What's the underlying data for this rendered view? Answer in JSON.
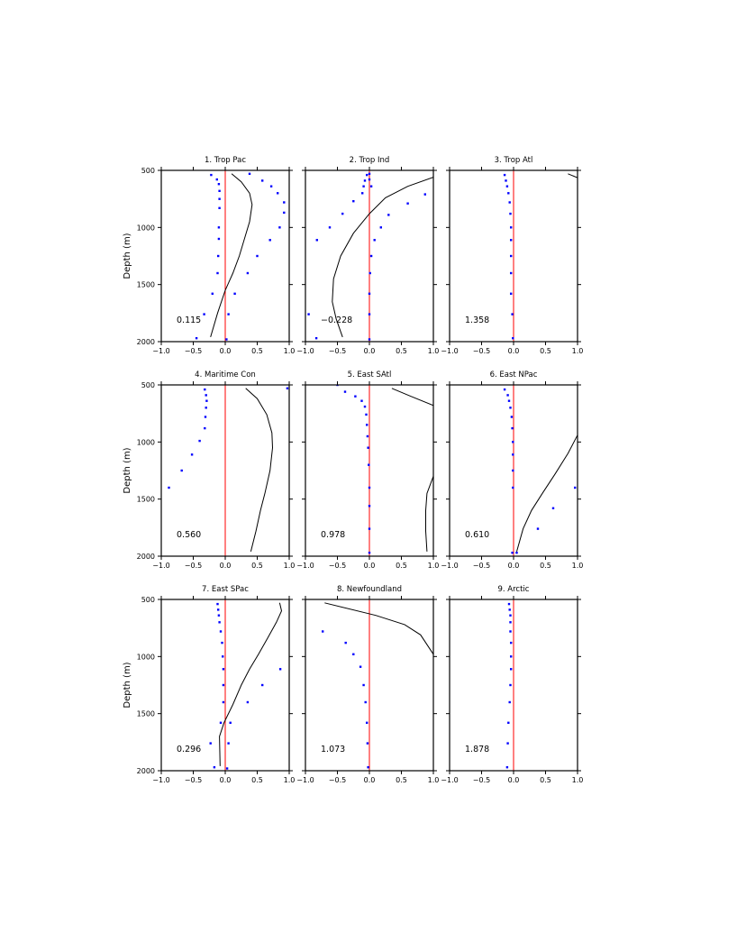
{
  "chart_data": {
    "type": "line",
    "panels_layout": {
      "rows": 3,
      "cols": 3
    },
    "xlim": [
      -1.0,
      1.0
    ],
    "ylim": [
      500,
      2000
    ],
    "y_inverted": true,
    "x_ticks": [
      -1.0,
      -0.5,
      0.0,
      0.5,
      1.0
    ],
    "x_tick_labels": [
      "−1.0",
      "−0.5",
      "0.0",
      "0.5",
      "1.0"
    ],
    "y_ticks": [
      500,
      1000,
      1500,
      2000
    ],
    "y_tick_labels": [
      "500",
      "1000",
      "1500",
      "2000"
    ],
    "ylabel": "Depth (m)",
    "zero_line_color": "#ff0000",
    "line_color": "#000000",
    "dot_color": "#0000ff",
    "panels": [
      {
        "title": "1. Trop Pac",
        "value": "0.115",
        "line": [
          [
            0.1,
            530
          ],
          [
            0.25,
            600
          ],
          [
            0.38,
            700
          ],
          [
            0.42,
            800
          ],
          [
            0.38,
            950
          ],
          [
            0.3,
            1100
          ],
          [
            0.22,
            1250
          ],
          [
            0.12,
            1400
          ],
          [
            0.0,
            1550
          ],
          [
            -0.12,
            1750
          ],
          [
            -0.23,
            1960
          ]
        ],
        "dots": [
          [
            -0.22,
            540
          ],
          [
            -0.13,
            580
          ],
          [
            -0.1,
            620
          ],
          [
            -0.09,
            680
          ],
          [
            -0.09,
            750
          ],
          [
            -0.09,
            830
          ],
          [
            -0.1,
            1000
          ],
          [
            -0.1,
            1100
          ],
          [
            -0.11,
            1250
          ],
          [
            -0.12,
            1400
          ],
          [
            -0.2,
            1580
          ],
          [
            -0.33,
            1760
          ],
          [
            -0.45,
            1970
          ],
          [
            0.38,
            530
          ],
          [
            0.58,
            590
          ],
          [
            0.72,
            640
          ],
          [
            0.82,
            700
          ],
          [
            0.92,
            780
          ],
          [
            0.92,
            870
          ],
          [
            0.85,
            1000
          ],
          [
            0.7,
            1110
          ],
          [
            0.5,
            1250
          ],
          [
            0.35,
            1400
          ],
          [
            0.15,
            1580
          ],
          [
            0.05,
            1760
          ],
          [
            0.02,
            1980
          ]
        ]
      },
      {
        "title": "2. Trop Ind",
        "value": "−0.228",
        "line": [
          [
            1.0,
            560
          ],
          [
            0.6,
            640
          ],
          [
            0.25,
            740
          ],
          [
            0.0,
            880
          ],
          [
            -0.25,
            1050
          ],
          [
            -0.45,
            1250
          ],
          [
            -0.56,
            1450
          ],
          [
            -0.58,
            1650
          ],
          [
            -0.52,
            1800
          ],
          [
            -0.42,
            1960
          ]
        ],
        "dots": [
          [
            -0.04,
            540
          ],
          [
            -0.07,
            590
          ],
          [
            -0.09,
            640
          ],
          [
            -0.11,
            700
          ],
          [
            -0.25,
            770
          ],
          [
            -0.42,
            880
          ],
          [
            -0.62,
            1000
          ],
          [
            -0.82,
            1110
          ],
          [
            -0.95,
            1760
          ],
          [
            -0.83,
            1970
          ],
          [
            0.0,
            530
          ],
          [
            0.0,
            580
          ],
          [
            0.03,
            640
          ],
          [
            0.87,
            710
          ],
          [
            0.6,
            790
          ],
          [
            0.3,
            890
          ],
          [
            0.18,
            1000
          ],
          [
            0.08,
            1110
          ],
          [
            0.03,
            1250
          ],
          [
            0.01,
            1400
          ],
          [
            0.0,
            1580
          ],
          [
            0.0,
            1760
          ],
          [
            0.0,
            1980
          ]
        ]
      },
      {
        "title": "3. Trop Atl",
        "value": "1.358",
        "line": [
          [
            0.85,
            530
          ],
          [
            1.0,
            565
          ]
        ],
        "dots": [
          [
            -0.14,
            540
          ],
          [
            -0.12,
            590
          ],
          [
            -0.1,
            640
          ],
          [
            -0.08,
            700
          ],
          [
            -0.06,
            780
          ],
          [
            -0.05,
            880
          ],
          [
            -0.04,
            1000
          ],
          [
            -0.04,
            1110
          ],
          [
            -0.04,
            1250
          ],
          [
            -0.04,
            1400
          ],
          [
            -0.04,
            1580
          ],
          [
            -0.02,
            1760
          ],
          [
            -0.01,
            1970
          ]
        ]
      },
      {
        "title": "4. Maritime Con",
        "value": "0.560",
        "line": [
          [
            0.32,
            530
          ],
          [
            0.5,
            620
          ],
          [
            0.65,
            760
          ],
          [
            0.73,
            920
          ],
          [
            0.74,
            1050
          ],
          [
            0.7,
            1250
          ],
          [
            0.62,
            1450
          ],
          [
            0.55,
            1600
          ],
          [
            0.48,
            1780
          ],
          [
            0.4,
            1960
          ]
        ],
        "dots": [
          [
            -0.32,
            540
          ],
          [
            -0.3,
            590
          ],
          [
            -0.29,
            640
          ],
          [
            -0.3,
            700
          ],
          [
            -0.31,
            780
          ],
          [
            -0.32,
            880
          ],
          [
            -0.4,
            990
          ],
          [
            -0.52,
            1110
          ],
          [
            -0.68,
            1250
          ],
          [
            -0.88,
            1400
          ],
          [
            0.97,
            530
          ]
        ]
      },
      {
        "title": "5. East SAtl",
        "value": "0.978",
        "line": [
          [
            0.35,
            530
          ],
          [
            0.65,
            600
          ],
          [
            1.0,
            680
          ]
        ],
        "line2": [
          [
            1.0,
            1300
          ],
          [
            0.9,
            1450
          ],
          [
            0.88,
            1600
          ],
          [
            0.88,
            1780
          ],
          [
            0.9,
            1960
          ]
        ],
        "dots": [
          [
            -0.5,
            500
          ],
          [
            -0.38,
            560
          ],
          [
            -0.22,
            600
          ],
          [
            -0.12,
            640
          ],
          [
            -0.07,
            690
          ],
          [
            -0.05,
            760
          ],
          [
            -0.04,
            850
          ],
          [
            -0.03,
            950
          ],
          [
            -0.02,
            1050
          ],
          [
            -0.01,
            1200
          ],
          [
            0.0,
            1400
          ],
          [
            0.0,
            1560
          ],
          [
            0.0,
            1760
          ],
          [
            0.0,
            1970
          ]
        ]
      },
      {
        "title": "6. East NPac",
        "value": "0.610",
        "line": [
          [
            1.0,
            940
          ],
          [
            0.85,
            1100
          ],
          [
            0.65,
            1280
          ],
          [
            0.45,
            1450
          ],
          [
            0.28,
            1600
          ],
          [
            0.15,
            1760
          ],
          [
            0.05,
            1960
          ]
        ],
        "dots": [
          [
            -0.14,
            540
          ],
          [
            -0.09,
            590
          ],
          [
            -0.07,
            640
          ],
          [
            -0.05,
            700
          ],
          [
            -0.03,
            780
          ],
          [
            -0.02,
            880
          ],
          [
            -0.01,
            1000
          ],
          [
            -0.01,
            1110
          ],
          [
            -0.01,
            1250
          ],
          [
            -0.01,
            1400
          ],
          [
            0.96,
            1400
          ],
          [
            0.62,
            1580
          ],
          [
            0.38,
            1760
          ],
          [
            0.05,
            1970
          ],
          [
            -0.02,
            1970
          ]
        ]
      },
      {
        "title": "7. East SPac",
        "value": "0.296",
        "line": [
          [
            0.85,
            530
          ],
          [
            0.88,
            600
          ],
          [
            0.8,
            700
          ],
          [
            0.66,
            840
          ],
          [
            0.52,
            980
          ],
          [
            0.38,
            1110
          ],
          [
            0.25,
            1250
          ],
          [
            0.12,
            1420
          ],
          [
            -0.02,
            1580
          ],
          [
            -0.09,
            1700
          ],
          [
            -0.08,
            1960
          ]
        ],
        "dots": [
          [
            -0.12,
            540
          ],
          [
            -0.11,
            590
          ],
          [
            -0.1,
            640
          ],
          [
            -0.09,
            700
          ],
          [
            -0.07,
            780
          ],
          [
            -0.05,
            880
          ],
          [
            -0.04,
            1000
          ],
          [
            -0.03,
            1110
          ],
          [
            -0.03,
            1250
          ],
          [
            -0.03,
            1400
          ],
          [
            -0.07,
            1580
          ],
          [
            -0.23,
            1760
          ],
          [
            -0.17,
            1970
          ],
          [
            0.86,
            1110
          ],
          [
            0.58,
            1250
          ],
          [
            0.35,
            1400
          ],
          [
            0.08,
            1580
          ],
          [
            0.05,
            1760
          ],
          [
            0.03,
            1980
          ]
        ]
      },
      {
        "title": "8. Newfoundland",
        "value": "1.073",
        "line": [
          [
            -0.7,
            530
          ],
          [
            0.1,
            640
          ],
          [
            0.55,
            720
          ],
          [
            0.8,
            810
          ],
          [
            1.0,
            980
          ]
        ],
        "dots": [
          [
            -0.73,
            780
          ],
          [
            -0.37,
            880
          ],
          [
            -0.25,
            980
          ],
          [
            -0.14,
            1090
          ],
          [
            -0.09,
            1250
          ],
          [
            -0.06,
            1400
          ],
          [
            -0.04,
            1580
          ],
          [
            -0.03,
            1760
          ],
          [
            -0.02,
            1970
          ]
        ]
      },
      {
        "title": "9. Arctic",
        "value": "1.878",
        "line": [],
        "dots": [
          [
            -0.07,
            540
          ],
          [
            -0.06,
            590
          ],
          [
            -0.05,
            640
          ],
          [
            -0.05,
            700
          ],
          [
            -0.05,
            780
          ],
          [
            -0.04,
            880
          ],
          [
            -0.04,
            1000
          ],
          [
            -0.04,
            1110
          ],
          [
            -0.05,
            1250
          ],
          [
            -0.06,
            1400
          ],
          [
            -0.08,
            1580
          ],
          [
            -0.09,
            1760
          ],
          [
            -0.1,
            1970
          ]
        ]
      }
    ]
  }
}
